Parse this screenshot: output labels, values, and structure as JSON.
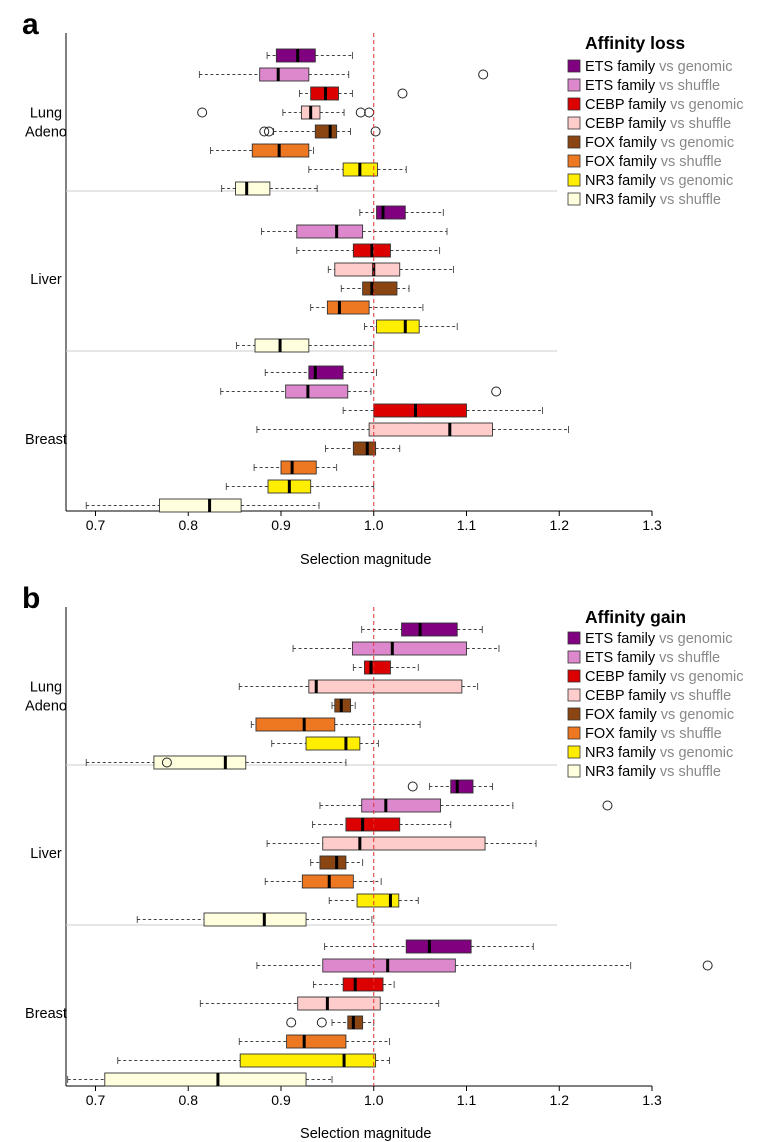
{
  "chart_data": [
    {
      "type": "boxplot",
      "panel_label": "a",
      "legend_title": "Affinity loss",
      "xlabel": "Selection magnitude",
      "xlim": [
        0.67,
        1.3
      ],
      "xticks": [
        "0.7",
        "0.8",
        "0.9",
        "1.0",
        "1.1",
        "1.2",
        "1.3"
      ],
      "reference_line": 1.0,
      "groups": [
        "Lung\nAdeno",
        "Liver",
        "Breast"
      ],
      "series": [
        {
          "name": "ETS family",
          "suffix": "vs genomic",
          "color": "#800080"
        },
        {
          "name": "ETS family",
          "suffix": "vs shuffle",
          "color": "#dd88cc"
        },
        {
          "name": "CEBP family",
          "suffix": "vs genomic",
          "color": "#dd0000"
        },
        {
          "name": "CEBP family",
          "suffix": "vs shuffle",
          "color": "#ffcccc"
        },
        {
          "name": "FOX family",
          "suffix": "vs genomic",
          "color": "#8b4513"
        },
        {
          "name": "FOX family",
          "suffix": "vs shuffle",
          "color": "#ee7722"
        },
        {
          "name": "NR3 family",
          "suffix": "vs genomic",
          "color": "#ffee00"
        },
        {
          "name": "NR3 family",
          "suffix": "vs shuffle",
          "color": "#ffffdd"
        }
      ],
      "boxes": [
        [
          {
            "wmin": 0.885,
            "q1": 0.895,
            "median": 0.918,
            "q3": 0.937,
            "wmax": 0.977,
            "outliers": []
          },
          {
            "wmin": 0.812,
            "q1": 0.877,
            "median": 0.897,
            "q3": 0.93,
            "wmax": 0.973,
            "outliers": [
              1.118
            ]
          },
          {
            "wmin": 0.92,
            "q1": 0.932,
            "median": 0.948,
            "q3": 0.962,
            "wmax": 0.977,
            "outliers": [
              1.031
            ]
          },
          {
            "wmin": 0.902,
            "q1": 0.922,
            "median": 0.932,
            "q3": 0.942,
            "wmax": 0.968,
            "outliers": [
              0.815,
              0.986,
              0.995
            ]
          },
          {
            "wmin": 0.892,
            "q1": 0.937,
            "median": 0.953,
            "q3": 0.96,
            "wmax": 0.975,
            "outliers": [
              0.882,
              0.887,
              1.002
            ]
          },
          {
            "wmin": 0.824,
            "q1": 0.869,
            "median": 0.898,
            "q3": 0.93,
            "wmax": 0.935,
            "outliers": []
          },
          {
            "wmin": 0.93,
            "q1": 0.967,
            "median": 0.985,
            "q3": 1.004,
            "wmax": 1.035,
            "outliers": []
          },
          {
            "wmin": 0.836,
            "q1": 0.851,
            "median": 0.863,
            "q3": 0.888,
            "wmax": 0.939,
            "outliers": []
          }
        ],
        [
          {
            "wmin": 0.985,
            "q1": 1.003,
            "median": 1.01,
            "q3": 1.034,
            "wmax": 1.075,
            "outliers": []
          },
          {
            "wmin": 0.879,
            "q1": 0.917,
            "median": 0.96,
            "q3": 0.988,
            "wmax": 1.079,
            "outliers": []
          },
          {
            "wmin": 0.917,
            "q1": 0.978,
            "median": 0.998,
            "q3": 1.018,
            "wmax": 1.071,
            "outliers": []
          },
          {
            "wmin": 0.951,
            "q1": 0.958,
            "median": 1.0,
            "q3": 1.028,
            "wmax": 1.086,
            "outliers": []
          },
          {
            "wmin": 0.965,
            "q1": 0.988,
            "median": 0.998,
            "q3": 1.025,
            "wmax": 1.038,
            "outliers": []
          },
          {
            "wmin": 0.932,
            "q1": 0.95,
            "median": 0.963,
            "q3": 0.995,
            "wmax": 1.053,
            "outliers": []
          },
          {
            "wmin": 0.99,
            "q1": 1.003,
            "median": 1.034,
            "q3": 1.049,
            "wmax": 1.09,
            "outliers": []
          },
          {
            "wmin": 0.852,
            "q1": 0.872,
            "median": 0.899,
            "q3": 0.93,
            "wmax": 1.0,
            "outliers": []
          }
        ],
        [
          {
            "wmin": 0.883,
            "q1": 0.93,
            "median": 0.937,
            "q3": 0.967,
            "wmax": 1.003,
            "outliers": []
          },
          {
            "wmin": 0.835,
            "q1": 0.905,
            "median": 0.929,
            "q3": 0.972,
            "wmax": 0.997,
            "outliers": [
              1.132
            ]
          },
          {
            "wmin": 0.967,
            "q1": 1.0,
            "median": 1.045,
            "q3": 1.1,
            "wmax": 1.182,
            "outliers": []
          },
          {
            "wmin": 0.874,
            "q1": 0.995,
            "median": 1.082,
            "q3": 1.128,
            "wmax": 1.21,
            "outliers": []
          },
          {
            "wmin": 0.948,
            "q1": 0.978,
            "median": 0.993,
            "q3": 1.002,
            "wmax": 1.028,
            "outliers": []
          },
          {
            "wmin": 0.871,
            "q1": 0.9,
            "median": 0.912,
            "q3": 0.938,
            "wmax": 0.96,
            "outliers": []
          },
          {
            "wmin": 0.841,
            "q1": 0.886,
            "median": 0.909,
            "q3": 0.932,
            "wmax": 1.0,
            "outliers": []
          },
          {
            "wmin": 0.69,
            "q1": 0.769,
            "median": 0.823,
            "q3": 0.857,
            "wmax": 0.941,
            "outliers": []
          }
        ]
      ]
    },
    {
      "type": "boxplot",
      "panel_label": "b",
      "legend_title": "Affinity gain",
      "xlabel": "Selection magnitude",
      "xlim": [
        0.67,
        1.3
      ],
      "xticks": [
        "0.7",
        "0.8",
        "0.9",
        "1.0",
        "1.1",
        "1.2",
        "1.3"
      ],
      "reference_line": 1.0,
      "groups": [
        "Lung\nAdeno",
        "Liver",
        "Breast"
      ],
      "series": [
        {
          "name": "ETS family",
          "suffix": "vs genomic",
          "color": "#800080"
        },
        {
          "name": "ETS family",
          "suffix": "vs shuffle",
          "color": "#dd88cc"
        },
        {
          "name": "CEBP family",
          "suffix": "vs genomic",
          "color": "#dd0000"
        },
        {
          "name": "CEBP family",
          "suffix": "vs shuffle",
          "color": "#ffcccc"
        },
        {
          "name": "FOX family",
          "suffix": "vs genomic",
          "color": "#8b4513"
        },
        {
          "name": "FOX family",
          "suffix": "vs shuffle",
          "color": "#ee7722"
        },
        {
          "name": "NR3 family",
          "suffix": "vs genomic",
          "color": "#ffee00"
        },
        {
          "name": "NR3 family",
          "suffix": "vs shuffle",
          "color": "#ffffdd"
        }
      ],
      "boxes": [
        [
          {
            "wmin": 0.987,
            "q1": 1.03,
            "median": 1.05,
            "q3": 1.09,
            "wmax": 1.117,
            "outliers": []
          },
          {
            "wmin": 0.913,
            "q1": 0.977,
            "median": 1.02,
            "q3": 1.1,
            "wmax": 1.135,
            "outliers": []
          },
          {
            "wmin": 0.978,
            "q1": 0.99,
            "median": 0.997,
            "q3": 1.018,
            "wmax": 1.048,
            "outliers": []
          },
          {
            "wmin": 0.855,
            "q1": 0.93,
            "median": 0.938,
            "q3": 1.095,
            "wmax": 1.112,
            "outliers": []
          },
          {
            "wmin": 0.955,
            "q1": 0.958,
            "median": 0.965,
            "q3": 0.975,
            "wmax": 0.98,
            "outliers": []
          },
          {
            "wmin": 0.868,
            "q1": 0.873,
            "median": 0.925,
            "q3": 0.958,
            "wmax": 1.05,
            "outliers": []
          },
          {
            "wmin": 0.89,
            "q1": 0.927,
            "median": 0.97,
            "q3": 0.985,
            "wmax": 1.005,
            "outliers": []
          },
          {
            "wmin": 0.69,
            "q1": 0.763,
            "median": 0.84,
            "q3": 0.862,
            "wmax": 0.97,
            "outliers": [
              0.777
            ]
          }
        ],
        [
          {
            "wmin": 1.06,
            "q1": 1.083,
            "median": 1.09,
            "q3": 1.107,
            "wmax": 1.128,
            "outliers": [
              1.042
            ]
          },
          {
            "wmin": 0.942,
            "q1": 0.987,
            "median": 1.013,
            "q3": 1.072,
            "wmax": 1.15,
            "outliers": [
              1.252
            ]
          },
          {
            "wmin": 0.934,
            "q1": 0.97,
            "median": 0.988,
            "q3": 1.028,
            "wmax": 1.083,
            "outliers": []
          },
          {
            "wmin": 0.885,
            "q1": 0.945,
            "median": 0.985,
            "q3": 1.12,
            "wmax": 1.175,
            "outliers": []
          },
          {
            "wmin": 0.932,
            "q1": 0.942,
            "median": 0.96,
            "q3": 0.97,
            "wmax": 0.988,
            "outliers": []
          },
          {
            "wmin": 0.883,
            "q1": 0.923,
            "median": 0.952,
            "q3": 0.978,
            "wmax": 1.008,
            "outliers": []
          },
          {
            "wmin": 0.952,
            "q1": 0.982,
            "median": 1.018,
            "q3": 1.027,
            "wmax": 1.048,
            "outliers": []
          },
          {
            "wmin": 0.745,
            "q1": 0.817,
            "median": 0.882,
            "q3": 0.927,
            "wmax": 0.998,
            "outliers": []
          }
        ],
        [
          {
            "wmin": 0.947,
            "q1": 1.035,
            "median": 1.06,
            "q3": 1.105,
            "wmax": 1.172,
            "outliers": []
          },
          {
            "wmin": 0.874,
            "q1": 0.945,
            "median": 1.015,
            "q3": 1.088,
            "wmax": 1.277,
            "outliers": [
              1.36
            ]
          },
          {
            "wmin": 0.935,
            "q1": 0.967,
            "median": 0.98,
            "q3": 1.01,
            "wmax": 1.022,
            "outliers": []
          },
          {
            "wmin": 0.813,
            "q1": 0.918,
            "median": 0.95,
            "q3": 1.007,
            "wmax": 1.07,
            "outliers": []
          },
          {
            "wmin": 0.955,
            "q1": 0.972,
            "median": 0.978,
            "q3": 0.988,
            "wmax": 1.0,
            "outliers": [
              0.911,
              0.944
            ]
          },
          {
            "wmin": 0.855,
            "q1": 0.906,
            "median": 0.925,
            "q3": 0.97,
            "wmax": 1.017,
            "outliers": []
          },
          {
            "wmin": 0.724,
            "q1": 0.856,
            "median": 0.968,
            "q3": 1.002,
            "wmax": 1.017,
            "outliers": []
          },
          {
            "wmin": 0.67,
            "q1": 0.71,
            "median": 0.832,
            "q3": 0.927,
            "wmax": 0.955,
            "outliers": []
          }
        ]
      ]
    }
  ]
}
